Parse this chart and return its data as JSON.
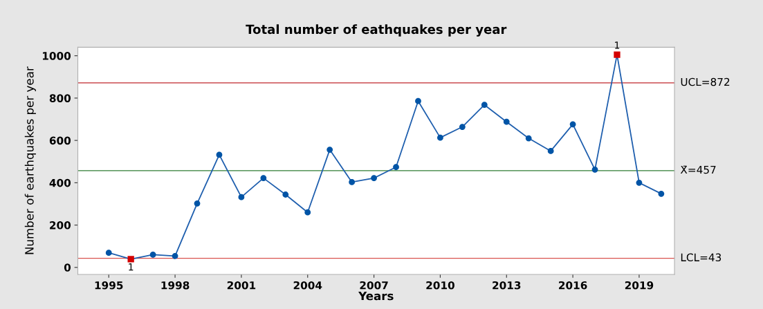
{
  "chart_data": {
    "type": "line",
    "title": "Total number of eathquakes per year",
    "xlabel": "Years",
    "ylabel": "Number of earthquakes per year",
    "xlim": [
      1993.6,
      2020.6
    ],
    "xticks": [
      1995,
      1998,
      2001,
      2004,
      2007,
      2010,
      2013,
      2016,
      2019
    ],
    "ylim": [
      -33,
      1040
    ],
    "yticks": [
      0,
      200,
      400,
      600,
      800,
      1000
    ],
    "grid": false,
    "legend": false,
    "series": [
      {
        "color": "#1f5fae",
        "marker": "none",
        "x": [
          1995,
          1996,
          1997,
          1998,
          1999,
          2000,
          2001,
          2002,
          2003,
          2004,
          2005,
          2006,
          2007,
          2008,
          2009,
          2010,
          2011,
          2012,
          2013,
          2014,
          2015,
          2016,
          2017,
          2018,
          2019,
          2020
        ],
        "values": [
          69,
          39,
          60,
          54,
          302,
          532,
          332,
          422,
          344,
          260,
          556,
          403,
          422,
          474,
          786,
          613,
          664,
          768,
          688,
          610,
          550,
          676,
          462,
          1005,
          400,
          348
        ]
      },
      {
        "type": "scatter",
        "color": "#0054a6",
        "marker": "circle",
        "x": [
          1995,
          1997,
          1998,
          1999,
          2000,
          2001,
          2002,
          2003,
          2004,
          2005,
          2006,
          2007,
          2008,
          2009,
          2010,
          2011,
          2012,
          2013,
          2014,
          2015,
          2016,
          2017,
          2019,
          2020
        ],
        "values": [
          69,
          60,
          54,
          302,
          532,
          332,
          422,
          344,
          260,
          556,
          403,
          422,
          474,
          786,
          613,
          664,
          768,
          688,
          610,
          550,
          676,
          462,
          400,
          348
        ]
      },
      {
        "type": "scatter",
        "color": "#d40000",
        "marker": "square",
        "x": [
          1996,
          2018
        ],
        "values": [
          39,
          1005
        ]
      }
    ],
    "ref_lines": [
      {
        "axis": "y",
        "value": 872,
        "label": "UCL=872",
        "color": "#c0272d"
      },
      {
        "axis": "y",
        "value": 457,
        "label": "X̄=457",
        "color": "#2e7d32"
      },
      {
        "axis": "y",
        "value": 43,
        "label": "LCL=43",
        "color": "#d9534f"
      }
    ],
    "annotations": [
      {
        "text": "1",
        "x": 1996,
        "y": 39
      },
      {
        "text": "1",
        "x": 2018,
        "y": 1005
      }
    ]
  }
}
